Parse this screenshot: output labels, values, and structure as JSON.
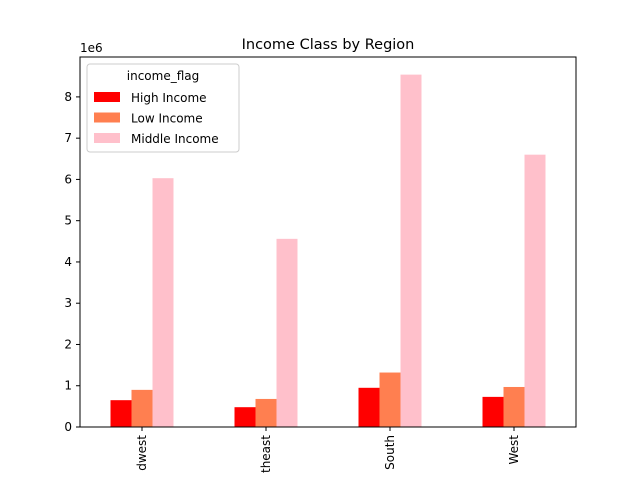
{
  "chart_data": {
    "type": "bar",
    "title": "Income Class by Region",
    "categories": [
      "Midwest",
      "Northeast",
      "South",
      "West"
    ],
    "tick_labels_visible": [
      "dwest",
      "theast",
      "South",
      "West"
    ],
    "series": [
      {
        "name": "High Income",
        "color": "#ff0000",
        "values": [
          650000,
          480000,
          950000,
          730000
        ]
      },
      {
        "name": "Low Income",
        "color": "#ff7f50",
        "values": [
          900000,
          680000,
          1320000,
          970000
        ]
      },
      {
        "name": "Middle Income",
        "color": "#ffc0cb",
        "values": [
          6030000,
          4560000,
          8540000,
          6600000
        ]
      }
    ],
    "xlabel": "",
    "ylabel": "",
    "y_offset_label": "1e6",
    "y_ticks": [
      0,
      1,
      2,
      3,
      4,
      5,
      6,
      7,
      8
    ],
    "y_scale": 1000000,
    "ylim": [
      0,
      8967000
    ],
    "legend": {
      "title": "income_flag",
      "placement": "top-left"
    },
    "grid": false
  }
}
